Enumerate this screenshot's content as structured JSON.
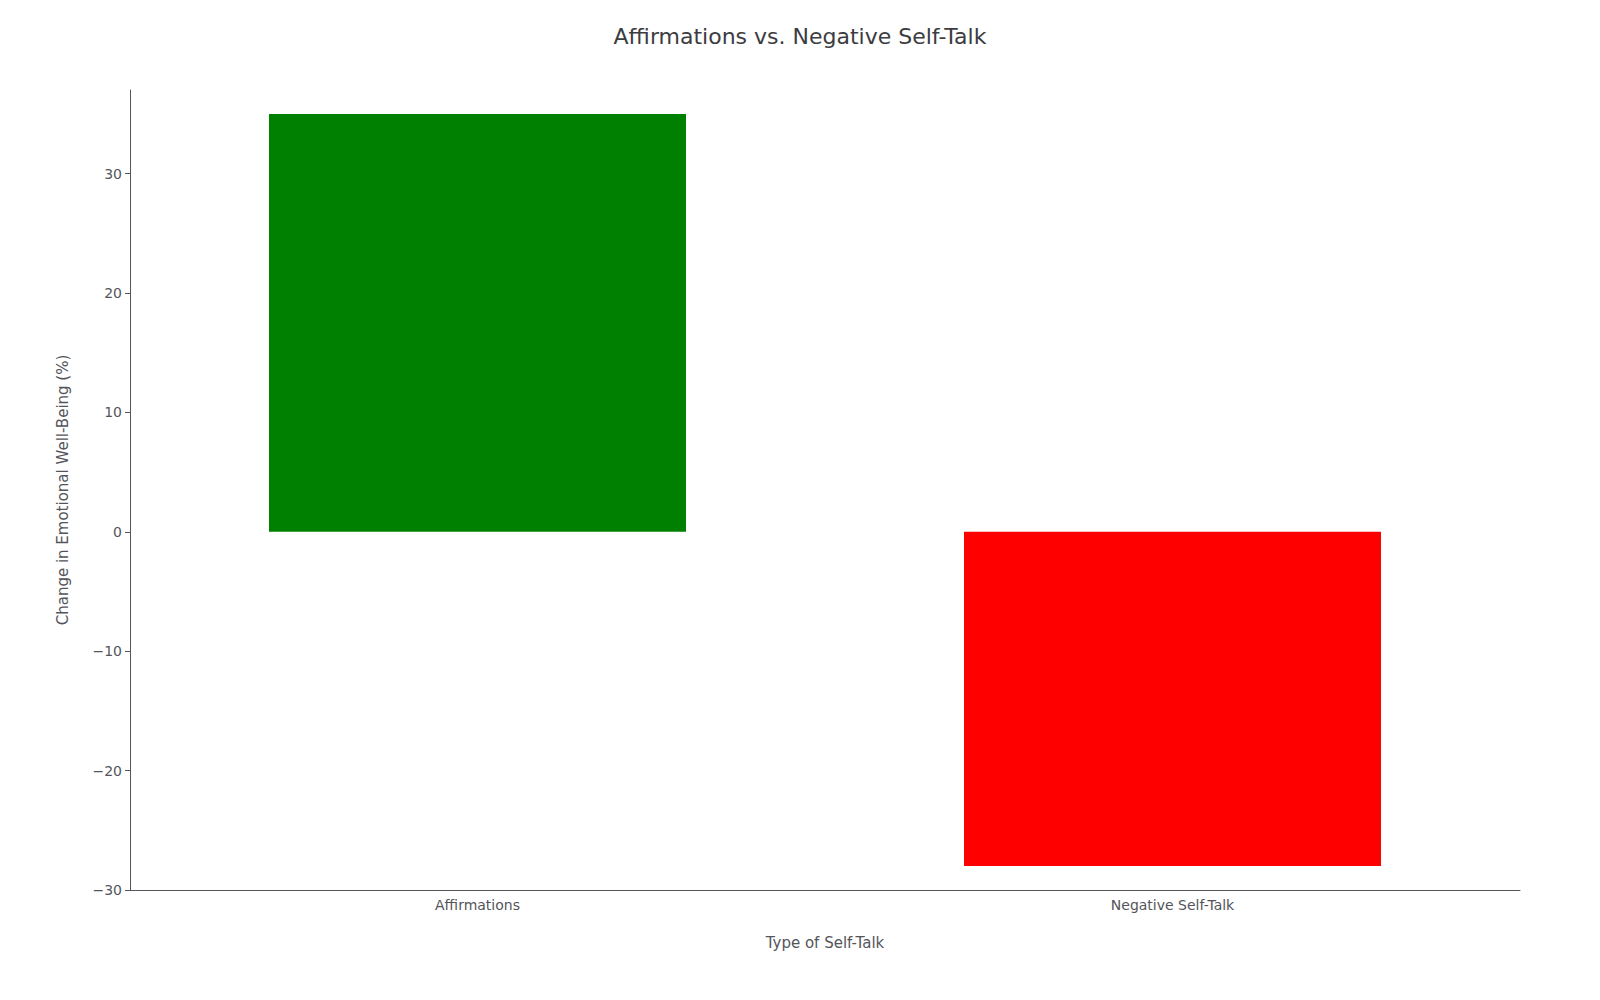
{
  "chart_data": {
    "type": "bar",
    "title": "Affirmations vs. Negative Self-Talk",
    "xlabel": "Type of Self-Talk",
    "ylabel": "Change in Emotional Well-Being (%)",
    "categories": [
      "Affirmations",
      "Negative Self-Talk"
    ],
    "values": [
      35,
      -28
    ],
    "colors": [
      "#008000",
      "#ff0000"
    ],
    "ylim": [
      -30,
      37
    ],
    "yticks": [
      {
        "value": -30,
        "label": "−30"
      },
      {
        "value": -20,
        "label": "−20"
      },
      {
        "value": -10,
        "label": "−10"
      },
      0,
      10,
      20,
      30
    ],
    "grid": false
  }
}
